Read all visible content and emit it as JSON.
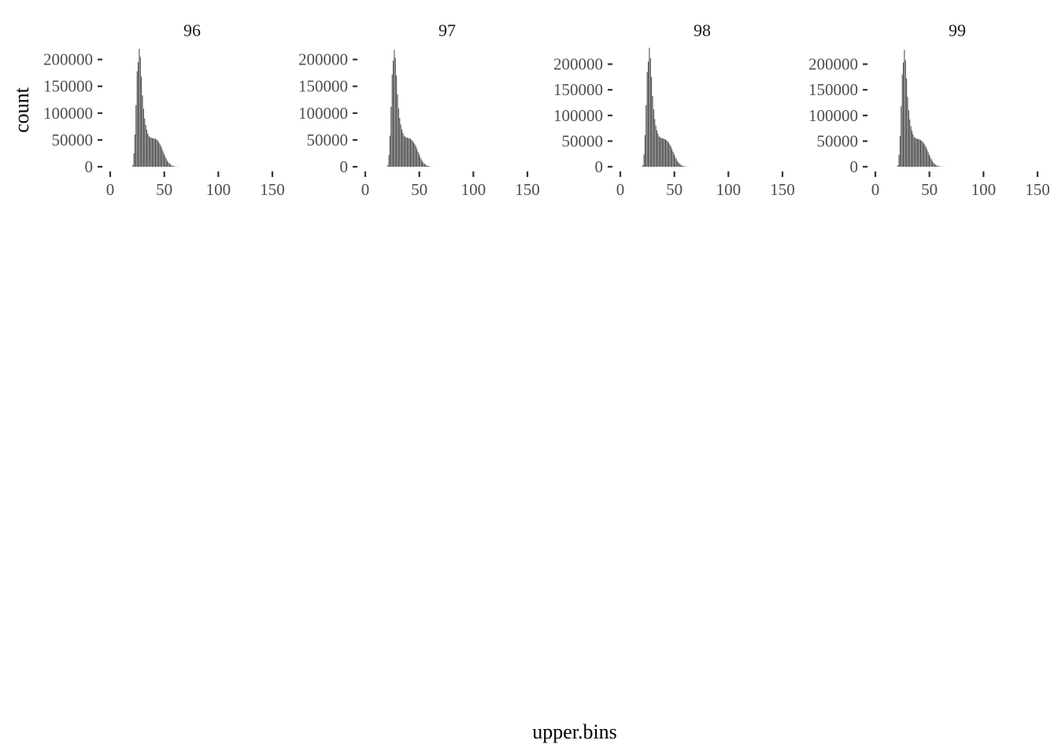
{
  "ylabel": "count",
  "xlabel": "upper.bins",
  "colors": {
    "bar": "#474747",
    "axis": "#333333",
    "text": "#4d4d4d",
    "strip": "#1a1a1a"
  },
  "chart_data": [
    {
      "type": "bar",
      "panel_title": "96",
      "xlim": [
        0,
        150
      ],
      "ylim": [
        0,
        220000
      ],
      "x_ticks": [
        0,
        50,
        100,
        150
      ],
      "y_ticks": [
        0,
        50000,
        100000,
        150000,
        200000
      ],
      "x": [
        21,
        22,
        23,
        24,
        25,
        26,
        27,
        28,
        29,
        30,
        31,
        32,
        33,
        34,
        35,
        36,
        37,
        38,
        39,
        40,
        41,
        42,
        43,
        44,
        45,
        46,
        47,
        48,
        49,
        50,
        51,
        52,
        53,
        54,
        55,
        56,
        57,
        58,
        59,
        60,
        61,
        62,
        63,
        64,
        65,
        66,
        67,
        68,
        69,
        70
      ],
      "values": [
        3000,
        25000,
        60000,
        115000,
        178000,
        195000,
        220000,
        205000,
        168000,
        133000,
        108000,
        90000,
        78000,
        69000,
        62000,
        57000,
        55000,
        54000,
        53500,
        53000,
        52500,
        52000,
        51000,
        49000,
        46000,
        43000,
        39000,
        34000,
        29000,
        24000,
        19000,
        15000,
        11000,
        8000,
        6000,
        4000,
        2500,
        1700,
        1000,
        600,
        400,
        250,
        150,
        100,
        60,
        40,
        25,
        15,
        10,
        5
      ]
    },
    {
      "type": "bar",
      "panel_title": "97",
      "xlim": [
        0,
        150
      ],
      "ylim": [
        0,
        220000
      ],
      "x_ticks": [
        0,
        50,
        100,
        150
      ],
      "y_ticks": [
        0,
        50000,
        100000,
        150000,
        200000
      ],
      "x": [
        21,
        22,
        23,
        24,
        25,
        26,
        27,
        28,
        29,
        30,
        31,
        32,
        33,
        34,
        35,
        36,
        37,
        38,
        39,
        40,
        41,
        42,
        43,
        44,
        45,
        46,
        47,
        48,
        49,
        50,
        51,
        52,
        53,
        54,
        55,
        56,
        57,
        58,
        59,
        60,
        61,
        62,
        63,
        64,
        65,
        66,
        67,
        68,
        69,
        70
      ],
      "values": [
        3000,
        22000,
        58000,
        112000,
        172000,
        198000,
        218000,
        203000,
        170000,
        135000,
        109000,
        91000,
        79000,
        70000,
        63000,
        58000,
        56000,
        55000,
        54000,
        53500,
        53000,
        52000,
        50000,
        48000,
        45000,
        42000,
        38000,
        33000,
        28000,
        23000,
        18000,
        14000,
        10500,
        7500,
        5500,
        3800,
        2400,
        1600,
        950,
        600,
        380,
        240,
        140,
        90,
        55,
        35,
        22,
        14,
        9,
        5
      ]
    },
    {
      "type": "bar",
      "panel_title": "98",
      "xlim": [
        0,
        150
      ],
      "ylim": [
        0,
        230000
      ],
      "x_ticks": [
        0,
        50,
        100,
        150
      ],
      "y_ticks": [
        0,
        50000,
        100000,
        150000,
        200000
      ],
      "x": [
        21,
        22,
        23,
        24,
        25,
        26,
        27,
        28,
        29,
        30,
        31,
        32,
        33,
        34,
        35,
        36,
        37,
        38,
        39,
        40,
        41,
        42,
        43,
        44,
        45,
        46,
        47,
        48,
        49,
        50,
        51,
        52,
        53,
        54,
        55,
        56,
        57,
        58,
        59,
        60,
        61,
        62,
        63,
        64,
        65,
        66,
        67,
        68,
        69,
        70
      ],
      "values": [
        3000,
        24000,
        62000,
        120000,
        185000,
        205000,
        232000,
        212000,
        175000,
        138000,
        112000,
        93000,
        80000,
        71000,
        64000,
        59000,
        57000,
        56000,
        55500,
        55000,
        54000,
        53000,
        51500,
        49500,
        46500,
        43000,
        39000,
        34000,
        29000,
        24000,
        19000,
        15000,
        11000,
        8000,
        5800,
        4000,
        2600,
        1700,
        1000,
        650,
        400,
        250,
        150,
        100,
        60,
        40,
        25,
        15,
        10,
        5
      ]
    },
    {
      "type": "bar",
      "panel_title": "99",
      "xlim": [
        0,
        150
      ],
      "ylim": [
        0,
        230000
      ],
      "x_ticks": [
        0,
        50,
        100,
        150
      ],
      "y_ticks": [
        0,
        50000,
        100000,
        150000,
        200000
      ],
      "x": [
        21,
        22,
        23,
        24,
        25,
        26,
        27,
        28,
        29,
        30,
        31,
        32,
        33,
        34,
        35,
        36,
        37,
        38,
        39,
        40,
        41,
        42,
        43,
        44,
        45,
        46,
        47,
        48,
        49,
        50,
        51,
        52,
        53,
        54,
        55,
        56,
        57,
        58,
        59,
        60,
        61,
        62,
        63,
        64,
        65,
        66,
        67,
        68,
        69,
        70
      ],
      "values": [
        3000,
        23000,
        60000,
        118000,
        180000,
        203000,
        228000,
        208000,
        172000,
        136000,
        110000,
        92000,
        79000,
        70000,
        63000,
        58000,
        56000,
        55000,
        54500,
        54000,
        53000,
        52000,
        50500,
        48500,
        45500,
        42500,
        38500,
        33500,
        28500,
        23500,
        18500,
        14500,
        10500,
        7500,
        5500,
        3800,
        2400,
        1600,
        950,
        600,
        380,
        240,
        140,
        90,
        55,
        35,
        22,
        14,
        9,
        5
      ]
    }
  ]
}
